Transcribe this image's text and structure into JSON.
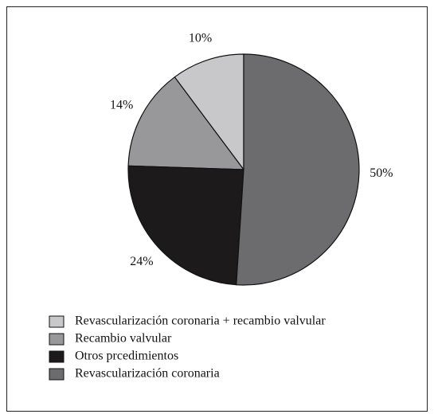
{
  "chart_data": {
    "type": "pie",
    "direction": "counterclockwise",
    "start": "top",
    "categories": [
      "Revascularización coronaria + recambio valvular",
      "Recambio valvular",
      "Otros prcedimientos",
      "Revascularización coronaria"
    ],
    "values": [
      10,
      14,
      24,
      50
    ],
    "value_labels": [
      "10%",
      "14%",
      "24%",
      "50%"
    ],
    "colors": [
      "#c8c8ca",
      "#98989a",
      "#1c1a1a",
      "#6c6c6e"
    ]
  }
}
